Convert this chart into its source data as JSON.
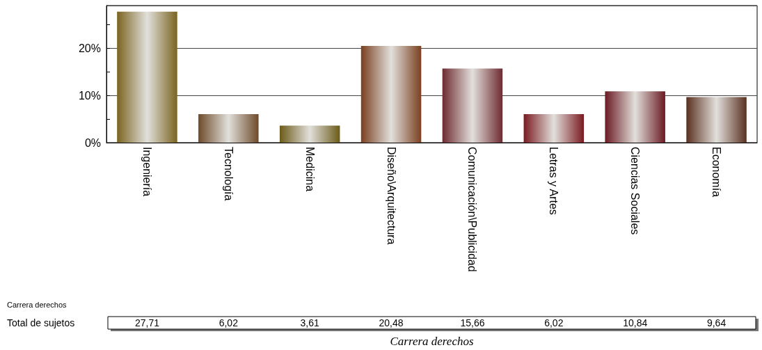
{
  "chart_data": {
    "type": "bar",
    "categories": [
      "Ingeniería",
      "Tecnología",
      "Medicina",
      "Diseño\\Arquitectura",
      "Comunicación\\Publicidad",
      "Letras y Artes",
      "Ciencias Sociales",
      "Economía"
    ],
    "values": [
      27.71,
      6.02,
      3.61,
      20.48,
      15.66,
      6.02,
      10.84,
      9.64
    ],
    "value_labels": [
      "27,71",
      "6,02",
      "3,61",
      "20,48",
      "15,66",
      "6,02",
      "10,84",
      "9,64"
    ],
    "colors": [
      "#7a6420",
      "#6e4a2a",
      "#6b5a18",
      "#7a4020",
      "#6e2a30",
      "#7a1a20",
      "#6a1a22",
      "#5a3020"
    ],
    "ylim": [
      0,
      29
    ],
    "yticks": [
      {
        "value": 0,
        "label": "0%"
      },
      {
        "value": 5,
        "label": null
      },
      {
        "value": 10,
        "label": "10%"
      },
      {
        "value": 15,
        "label": null
      },
      {
        "value": 20,
        "label": "20%"
      },
      {
        "value": 25,
        "label": null
      }
    ],
    "grid": "y",
    "annotations": [
      "Carrera derechos",
      "Total de sujetos",
      "Carrera derechos"
    ]
  }
}
